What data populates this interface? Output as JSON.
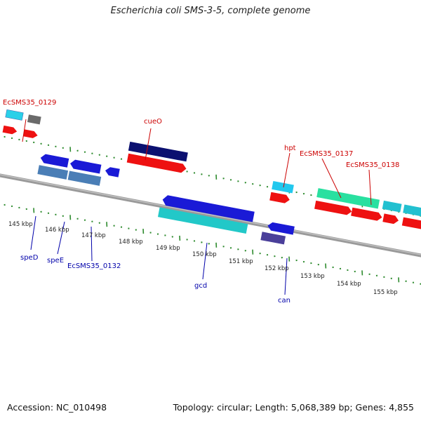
{
  "title": "Escherichia coli SMS-3-5, complete genome",
  "footer": {
    "accession": "Accession: NC_010498",
    "summary": "Topology: circular; Length: 5,068,389 bp; Genes: 4,855"
  },
  "colors": {
    "backbone": "#808080",
    "tick": "#2e8b2e",
    "label_forward": "#cc0000",
    "label_reverse": "#0000aa"
  },
  "ticks": [
    {
      "label": "145 kbp"
    },
    {
      "label": "146 kbp"
    },
    {
      "label": "147 kbp"
    },
    {
      "label": "148 kbp"
    },
    {
      "label": "149 kbp"
    },
    {
      "label": "150 kbp"
    },
    {
      "label": "151 kbp"
    },
    {
      "label": "152 kbp"
    },
    {
      "label": "153 kbp"
    },
    {
      "label": "154 kbp"
    },
    {
      "label": "155 kbp"
    }
  ],
  "labels": [
    {
      "text": "EcSMS35_0129",
      "strand": "forward"
    },
    {
      "text": "cueO",
      "strand": "forward"
    },
    {
      "text": "hpt",
      "strand": "forward"
    },
    {
      "text": "EcSMS35_0137",
      "strand": "forward"
    },
    {
      "text": "EcSMS35_0138",
      "strand": "forward"
    },
    {
      "text": "speD",
      "strand": "reverse"
    },
    {
      "text": "speE",
      "strand": "reverse"
    },
    {
      "text": "EcSMS35_0132",
      "strand": "reverse"
    },
    {
      "text": "gcd",
      "strand": "reverse"
    },
    {
      "text": "can",
      "strand": "reverse"
    }
  ]
}
